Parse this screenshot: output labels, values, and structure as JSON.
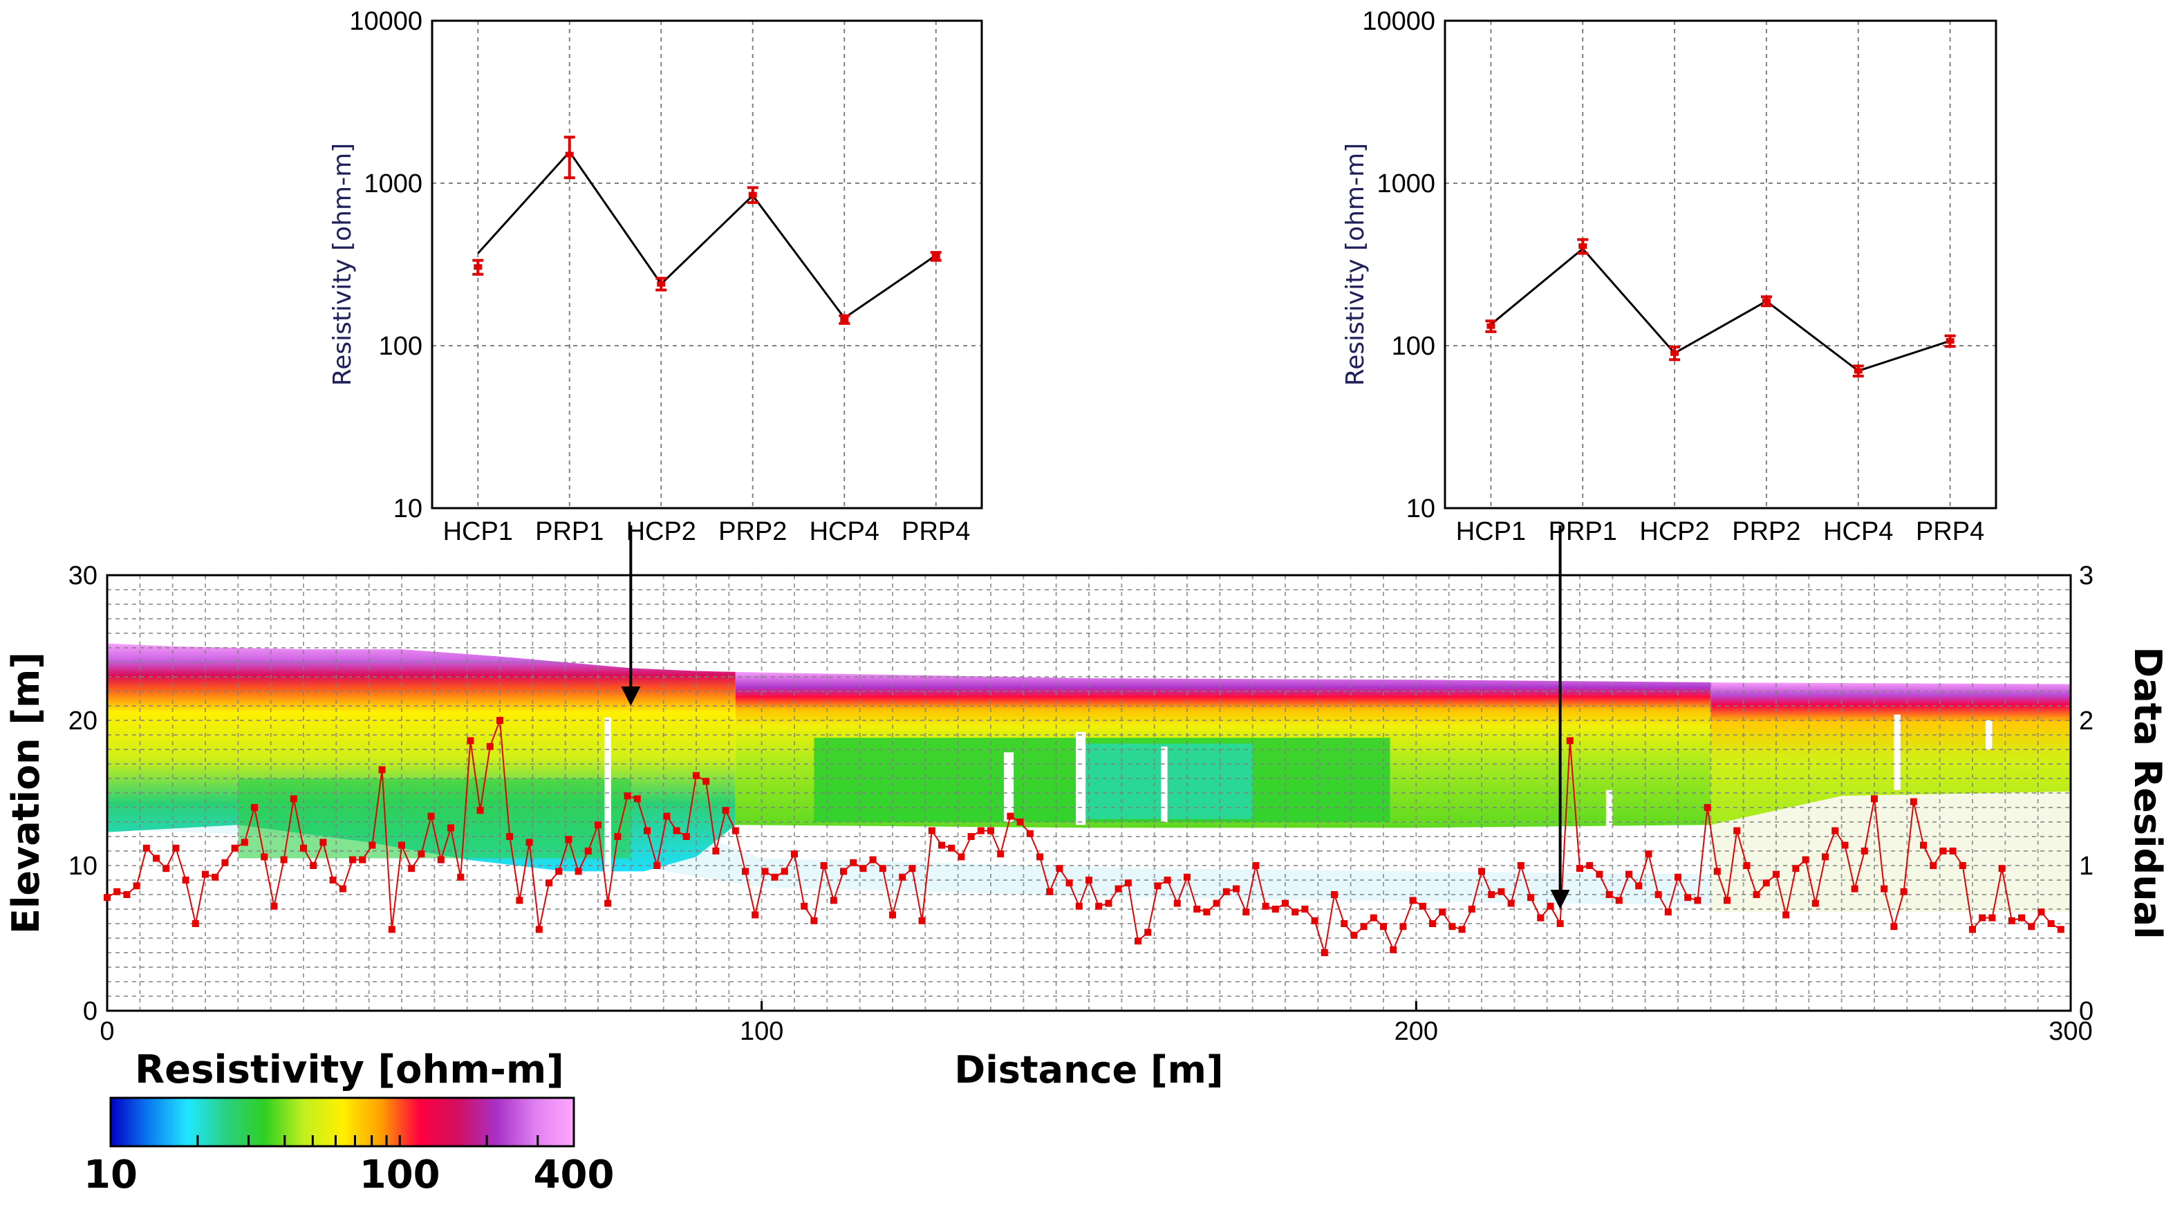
{
  "chart_data": [
    {
      "type": "line",
      "ylabel": "Resistivity [ohm-m]",
      "yscale": "log",
      "ylim": [
        10,
        10000
      ],
      "yticks": [
        "10",
        "100",
        "1000",
        "10000"
      ],
      "categories": [
        "HCP1",
        "PRP1",
        "HCP2",
        "PRP2",
        "HCP4",
        "PRP4"
      ],
      "series": [
        {
          "role": "model (black line)",
          "values": [
            370,
            1560,
            240,
            840,
            148,
            360
          ]
        },
        {
          "role": "observed (red, error bars)",
          "values": [
            305,
            1500,
            240,
            850,
            145,
            355
          ],
          "errors": [
            30,
            420,
            20,
            90,
            8,
            20
          ]
        }
      ],
      "grid": true
    },
    {
      "type": "line",
      "ylabel": "Resistivity [ohm-m]",
      "yscale": "log",
      "ylim": [
        10,
        10000
      ],
      "yticks": [
        "10",
        "100",
        "1000",
        "10000"
      ],
      "categories": [
        "HCP1",
        "PRP1",
        "HCP2",
        "PRP2",
        "HCP4",
        "PRP4"
      ],
      "series": [
        {
          "role": "model (black line)",
          "values": [
            135,
            395,
            90,
            188,
            70,
            107
          ]
        },
        {
          "role": "observed (red, error bars)",
          "values": [
            132,
            410,
            90,
            188,
            70,
            107
          ],
          "errors": [
            10,
            40,
            8,
            12,
            5,
            8
          ]
        }
      ],
      "grid": true
    },
    {
      "type": "heatmap",
      "xlabel": "Distance [m]",
      "ylabel": "Elevation [m]",
      "y2label": "Data Residual",
      "xlim": [
        0,
        300
      ],
      "ylim": [
        0,
        30
      ],
      "y2lim": [
        0,
        3
      ],
      "xticks": [
        "0",
        "100",
        "200",
        "300"
      ],
      "yticks": [
        "0",
        "10",
        "20",
        "30"
      ],
      "y2ticks": [
        "0",
        "1",
        "2",
        "3"
      ],
      "colorbar": {
        "label": "Resistivity [ohm-m]",
        "scale": "log",
        "range": [
          10,
          400
        ],
        "ticklabels": [
          "10",
          "100",
          "400"
        ],
        "colors": [
          "#0000c8",
          "#0a7cf0",
          "#20e8ff",
          "#2ad080",
          "#30d020",
          "#c0f020",
          "#fff000",
          "#ffa000",
          "#ff0040",
          "#d01060",
          "#a830c8",
          "#e080f0",
          "#ffa8ff"
        ]
      },
      "surface_elevation": {
        "x": [
          0,
          10,
          30,
          45,
          60,
          80,
          90,
          100,
          150,
          200,
          250,
          300
        ],
        "y": [
          25.3,
          25.1,
          24.9,
          24.9,
          24.4,
          23.6,
          23.4,
          23.3,
          22.9,
          22.8,
          22.6,
          22.5
        ]
      },
      "arrows_x": [
        80,
        222
      ],
      "residual_series": {
        "name": "Data Residual",
        "x": [
          0,
          1.5,
          3,
          4.5,
          6,
          7.5,
          9,
          10.5,
          12,
          13.5,
          15,
          16.5,
          18,
          19.5,
          21,
          22.5,
          24,
          25.5,
          27,
          28.5,
          30,
          31.5,
          33,
          34.5,
          36,
          37.5,
          39,
          40.5,
          42,
          43.5,
          45,
          46.5,
          48,
          49.5,
          51,
          52.5,
          54,
          55.5,
          57,
          58.5,
          60,
          61.5,
          63,
          64.5,
          66,
          67.5,
          69,
          70.5,
          72,
          73.5,
          75,
          76.5,
          78,
          79.5,
          81,
          82.5,
          84,
          85.5,
          87,
          88.5,
          90,
          91.5,
          93,
          94.5,
          96,
          97.5,
          99,
          100.5,
          102,
          103.5,
          105,
          106.5,
          108,
          109.5,
          111,
          112.5,
          114,
          115.5,
          117,
          118.5,
          120,
          121.5,
          123,
          124.5,
          126,
          127.5,
          129,
          130.5,
          132,
          133.5,
          135,
          136.5,
          138,
          139.5,
          141,
          142.5,
          144,
          145.5,
          147,
          148.5,
          150,
          151.5,
          153,
          154.5,
          156,
          157.5,
          159,
          160.5,
          162,
          163.5,
          165,
          166.5,
          168,
          169.5,
          171,
          172.5,
          174,
          175.5,
          177,
          178.5,
          180,
          181.5,
          183,
          184.5,
          186,
          187.5,
          189,
          190.5,
          192,
          193.5,
          195,
          196.5,
          198,
          199.5,
          201,
          202.5,
          204,
          205.5,
          207,
          208.5,
          210,
          211.5,
          213,
          214.5,
          216,
          217.5,
          219,
          220.5,
          222,
          223.5,
          225,
          226.5,
          228,
          229.5,
          231,
          232.5,
          234,
          235.5,
          237,
          238.5,
          240,
          241.5,
          243,
          244.5,
          246,
          247.5,
          249,
          250.5,
          252,
          253.5,
          255,
          256.5,
          258,
          259.5,
          261,
          262.5,
          264,
          265.5,
          267,
          268.5,
          270,
          271.5,
          273,
          274.5,
          276,
          277.5,
          279,
          280.5,
          282,
          283.5,
          285,
          286.5,
          288,
          289.5,
          291,
          292.5,
          294,
          295.5,
          297,
          298.5
        ],
        "y": [
          0.78,
          0.82,
          0.8,
          0.86,
          1.12,
          1.05,
          0.98,
          1.12,
          0.9,
          0.6,
          0.94,
          0.92,
          1.02,
          1.12,
          1.16,
          1.4,
          1.06,
          0.72,
          1.04,
          1.46,
          1.12,
          1.0,
          1.16,
          0.9,
          0.84,
          1.04,
          1.04,
          1.14,
          1.66,
          0.56,
          1.14,
          0.98,
          1.08,
          1.34,
          1.04,
          1.26,
          0.92,
          1.86,
          1.38,
          1.82,
          2.0,
          1.2,
          0.76,
          1.16,
          0.56,
          0.88,
          0.96,
          1.18,
          0.96,
          1.1,
          1.28,
          0.74,
          1.2,
          1.48,
          1.46,
          1.24,
          1.0,
          1.34,
          1.24,
          1.2,
          1.62,
          1.58,
          1.1,
          1.38,
          1.24,
          0.96,
          0.66,
          0.96,
          0.92,
          0.96,
          1.08,
          0.72,
          0.62,
          1.0,
          0.76,
          0.96,
          1.02,
          0.98,
          1.04,
          0.98,
          0.66,
          0.92,
          0.98,
          0.62,
          1.24,
          1.14,
          1.12,
          1.06,
          1.2,
          1.24,
          1.24,
          1.08,
          1.34,
          1.3,
          1.22,
          1.06,
          0.82,
          0.98,
          0.88,
          0.72,
          0.9,
          0.72,
          0.74,
          0.84,
          0.88,
          0.48,
          0.54,
          0.86,
          0.9,
          0.74,
          0.92,
          0.7,
          0.68,
          0.74,
          0.82,
          0.84,
          0.68,
          1.0,
          0.72,
          0.7,
          0.74,
          0.68,
          0.7,
          0.62,
          0.4,
          0.8,
          0.6,
          0.52,
          0.58,
          0.64,
          0.58,
          0.42,
          0.58,
          0.76,
          0.72,
          0.6,
          0.68,
          0.58,
          0.56,
          0.7,
          0.96,
          0.8,
          0.82,
          0.74,
          1.0,
          0.78,
          0.64,
          0.72,
          0.6,
          1.86,
          0.98,
          1.0,
          0.94,
          0.8,
          0.76,
          0.94,
          0.86,
          1.08,
          0.8,
          0.68,
          0.92,
          0.78,
          0.76,
          1.4,
          0.96,
          0.76,
          1.24,
          1.0,
          0.8,
          0.88,
          0.94,
          0.66,
          0.98,
          1.04,
          0.74,
          1.06,
          1.24,
          1.14,
          0.84,
          1.1,
          1.46,
          0.84,
          0.58,
          0.82,
          1.44,
          1.14,
          1.0,
          1.1,
          1.1,
          1.0,
          0.56,
          0.64,
          0.64,
          0.98,
          0.62,
          0.64,
          0.58,
          0.68,
          0.6,
          0.56,
          0.52,
          0.6,
          0.62
        ]
      },
      "grid": true
    }
  ]
}
